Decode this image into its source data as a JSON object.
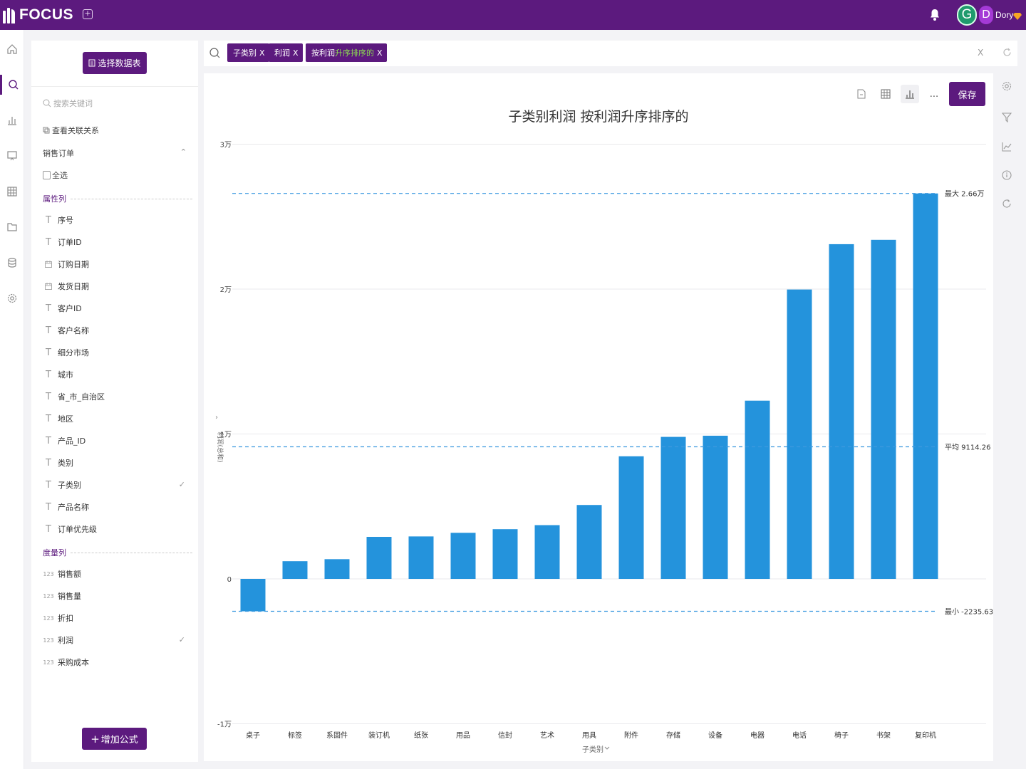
{
  "app": {
    "logo_text": "FOCUS"
  },
  "user": {
    "avatar_g": "G",
    "avatar_d": "D",
    "name": "Dory"
  },
  "panel": {
    "select_table_label": "选择数据表",
    "search_placeholder": "搜索关键词",
    "related_label": "查看关联关系",
    "table_name": "销售订单",
    "select_all": "全选",
    "attribute_section": "属性列",
    "measure_section": "度量列",
    "attributes": [
      {
        "label": "序号",
        "icon": "text-icon",
        "checked": false
      },
      {
        "label": "订单ID",
        "icon": "text-icon",
        "checked": false
      },
      {
        "label": "订购日期",
        "icon": "date-icon",
        "checked": false
      },
      {
        "label": "发货日期",
        "icon": "date-icon",
        "checked": false
      },
      {
        "label": "客户ID",
        "icon": "text-icon",
        "checked": false
      },
      {
        "label": "客户名称",
        "icon": "text-icon",
        "checked": false
      },
      {
        "label": "细分市场",
        "icon": "text-icon",
        "checked": false
      },
      {
        "label": "城市",
        "icon": "text-icon",
        "checked": false
      },
      {
        "label": "省_市_自治区",
        "icon": "text-icon",
        "checked": false
      },
      {
        "label": "地区",
        "icon": "text-icon",
        "checked": false
      },
      {
        "label": "产品_ID",
        "icon": "text-icon",
        "checked": false
      },
      {
        "label": "类别",
        "icon": "text-icon",
        "checked": false
      },
      {
        "label": "子类别",
        "icon": "text-icon",
        "checked": true
      },
      {
        "label": "产品名称",
        "icon": "text-icon",
        "checked": false
      },
      {
        "label": "订单优先级",
        "icon": "text-icon",
        "checked": false
      }
    ],
    "measures": [
      {
        "label": "销售额",
        "icon": "number-icon",
        "checked": false
      },
      {
        "label": "销售量",
        "icon": "number-icon",
        "checked": false
      },
      {
        "label": "折扣",
        "icon": "number-icon",
        "checked": false
      },
      {
        "label": "利润",
        "icon": "number-icon",
        "checked": true
      },
      {
        "label": "采购成本",
        "icon": "number-icon",
        "checked": false
      }
    ],
    "number_icon_text": "123",
    "text_icon_glyph": "T",
    "check_glyph": "✓",
    "add_formula_label": "增加公式"
  },
  "search": {
    "chips": [
      {
        "label": "子类别",
        "highlight": ""
      },
      {
        "label": "利润",
        "highlight": ""
      },
      {
        "label": "按利润",
        "highlight": "升序排序的"
      }
    ],
    "chip_close": "X",
    "clear": "X"
  },
  "toolbar": {
    "more_label": "...",
    "save_label": "保存"
  },
  "colors": {
    "brand": "#5c1a7e",
    "bar": "#2493dc",
    "refline": "#3d9ae0"
  },
  "chart_data": {
    "type": "bar",
    "title": "子类别利润 按利润升序排序的",
    "xlabel": "子类别",
    "ylabel": "利润(总和)",
    "ylim": [
      -10000,
      30000
    ],
    "yticks": [
      {
        "value": -10000,
        "label": "-1万"
      },
      {
        "value": 0,
        "label": "0"
      },
      {
        "value": 10000,
        "label": "1万"
      },
      {
        "value": 20000,
        "label": "2万"
      },
      {
        "value": 30000,
        "label": "3万"
      }
    ],
    "categories": [
      "桌子",
      "标签",
      "系固件",
      "装订机",
      "纸张",
      "用品",
      "信封",
      "艺术",
      "用具",
      "附件",
      "存储",
      "设备",
      "电器",
      "电话",
      "椅子",
      "书架",
      "复印机"
    ],
    "values": [
      -2235.63,
      1220,
      1360,
      2900,
      2930,
      3180,
      3430,
      3710,
      5100,
      8460,
      9800,
      9880,
      12300,
      19970,
      23100,
      23400,
      26600
    ],
    "reference_lines": [
      {
        "label": "最大 2.66万",
        "value": 26600
      },
      {
        "label": "平均 9114.26",
        "value": 9114.26
      },
      {
        "label": "最小 -2235.63",
        "value": -2235.63
      }
    ],
    "grid": true,
    "legend": "none"
  }
}
